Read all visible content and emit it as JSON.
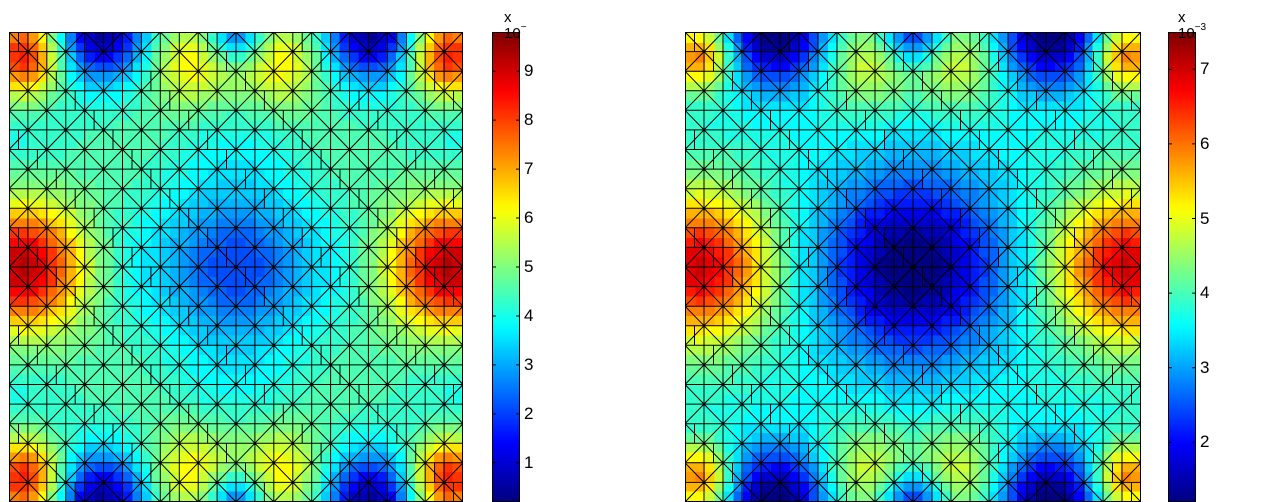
{
  "chart_data": [
    {
      "type": "heatmap",
      "colormap": "jet",
      "field": "four-fold symmetric nodal field on a triangulated square mesh",
      "colorbar": {
        "exponent_label": "x 10",
        "exponent_sup": "−",
        "ticks": [
          1,
          2,
          3,
          4,
          5,
          6,
          7,
          8,
          9
        ],
        "tick_labels": [
          "1",
          "2",
          "3",
          "4",
          "5",
          "6",
          "7",
          "8",
          "9"
        ],
        "range": [
          0.2,
          9.8
        ]
      },
      "features": {
        "max_value": 9.8,
        "min_value": 0.2,
        "center_value": 3.0
      }
    },
    {
      "type": "heatmap",
      "colormap": "jet",
      "field": "four-fold symmetric nodal field on a triangulated square mesh",
      "colorbar": {
        "exponent_label": "x 10",
        "exponent_sup": "−3",
        "ticks": [
          2,
          3,
          4,
          5,
          6,
          7
        ],
        "tick_labels": [
          "2",
          "3",
          "4",
          "5",
          "6",
          "7"
        ],
        "range": [
          1.2,
          7.5
        ]
      },
      "features": {
        "max_value": 7.5,
        "min_value": 1.2,
        "center_value": 1.3
      }
    }
  ]
}
